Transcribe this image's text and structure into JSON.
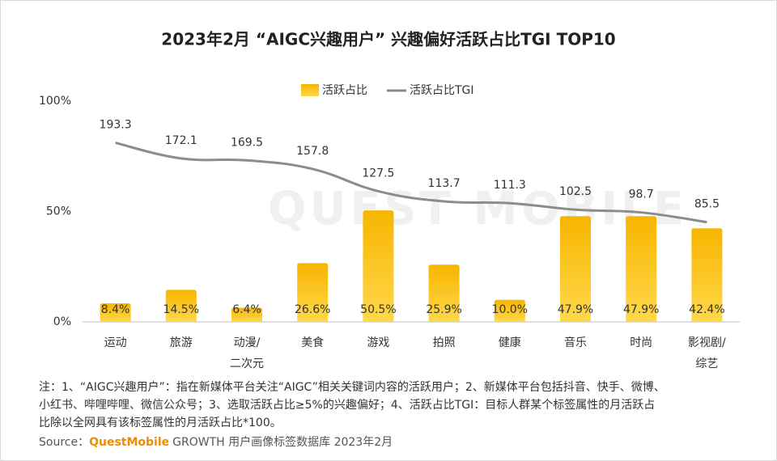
{
  "chart_data": {
    "type": "bar-line",
    "title": "2023年2月 “AIGC兴趣用户” 兴趣偏好活跃占比TGI TOP10",
    "watermark": "QUEST MOBILE",
    "categories": [
      "运动",
      "旅游",
      "动漫/二次元",
      "美食",
      "游戏",
      "拍照",
      "健康",
      "音乐",
      "时尚",
      "影视剧/综艺"
    ],
    "series": [
      {
        "name": "活跃占比",
        "type": "bar",
        "color": "#f7b500",
        "values": [
          8.4,
          14.5,
          6.4,
          26.6,
          50.5,
          25.9,
          10.0,
          47.9,
          47.9,
          42.4
        ],
        "value_labels": [
          "8.4%",
          "14.5%",
          "6.4%",
          "26.6%",
          "50.5%",
          "25.9%",
          "10.0%",
          "47.9%",
          "47.9%",
          "42.4%"
        ]
      },
      {
        "name": "活跃占比TGI",
        "type": "line",
        "color": "#8c8c8c",
        "axis": "y2",
        "values": [
          193.3,
          172.1,
          169.5,
          157.8,
          127.5,
          113.7,
          111.3,
          102.5,
          98.7,
          85.5
        ]
      }
    ],
    "ylim": [
      0,
      100
    ],
    "yticks": [
      {
        "value": 0,
        "label": "0%"
      },
      {
        "value": 50,
        "label": "50%"
      },
      {
        "value": 100,
        "label": "100%"
      }
    ],
    "y2lim": [
      -50,
      250
    ],
    "notes": [
      "注：1、“AIGC兴趣用户”：指在新媒体平台关注“AIGC”相关关键词内容的活跃用户；2、新媒体平台包括抖音、快手、微博、",
      "小红书、哔哩哔哩、微信公众号；3、选取活跃占比≥5%的兴趣偏好；4、活跃占比TGI：目标人群某个标签属性的月活跃占",
      "比除以全网具有该标签属性的月活跃占比*100。"
    ],
    "source_label": "Source：",
    "source_brand": "QuestMobile",
    "source_text": "GROWTH 用户画像标签数据库 2023年2月"
  }
}
